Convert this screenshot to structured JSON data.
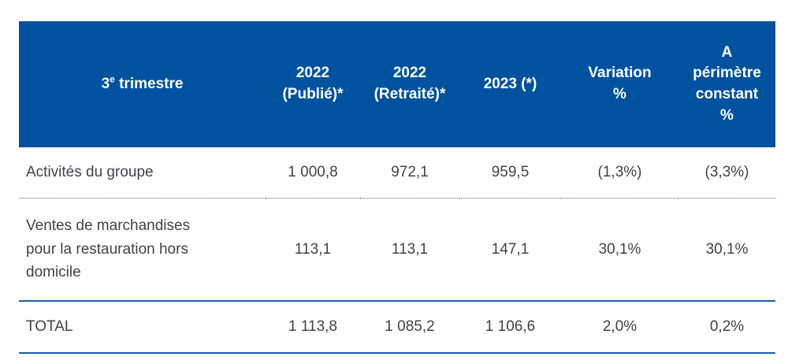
{
  "table": {
    "colors": {
      "header_background": "#00529e",
      "header_text": "#ffffff",
      "body_text": "#3f4247",
      "solid_line": "#1c5fa8",
      "dotted_line": "#3d6eb5"
    },
    "header": {
      "period_prefix": "3",
      "period_sup": "e",
      "period_suffix": " trimestre",
      "columns": [
        {
          "lines": [
            "2022",
            "(Publié)*"
          ]
        },
        {
          "lines": [
            "2022",
            "(Retraité)*"
          ]
        },
        {
          "lines": [
            "2023 (*)"
          ]
        },
        {
          "lines": [
            "Variation",
            "%"
          ]
        },
        {
          "lines": [
            "A",
            "périmètre",
            "constant",
            "%"
          ]
        }
      ]
    },
    "rows": [
      {
        "label": "Activités du groupe",
        "values": [
          "1 000,8",
          "972,1",
          "959,5",
          "(1,3%)",
          "(3,3%)"
        ]
      },
      {
        "label": "Ventes de marchandises pour la restauration hors domicile",
        "values": [
          "113,1",
          "113,1",
          "147,1",
          "30,1%",
          "30,1%"
        ]
      }
    ],
    "total": {
      "label": "TOTAL",
      "values": [
        "1 113,8",
        "1 085,2",
        "1 106,6",
        "2,0%",
        "0,2%"
      ]
    }
  }
}
